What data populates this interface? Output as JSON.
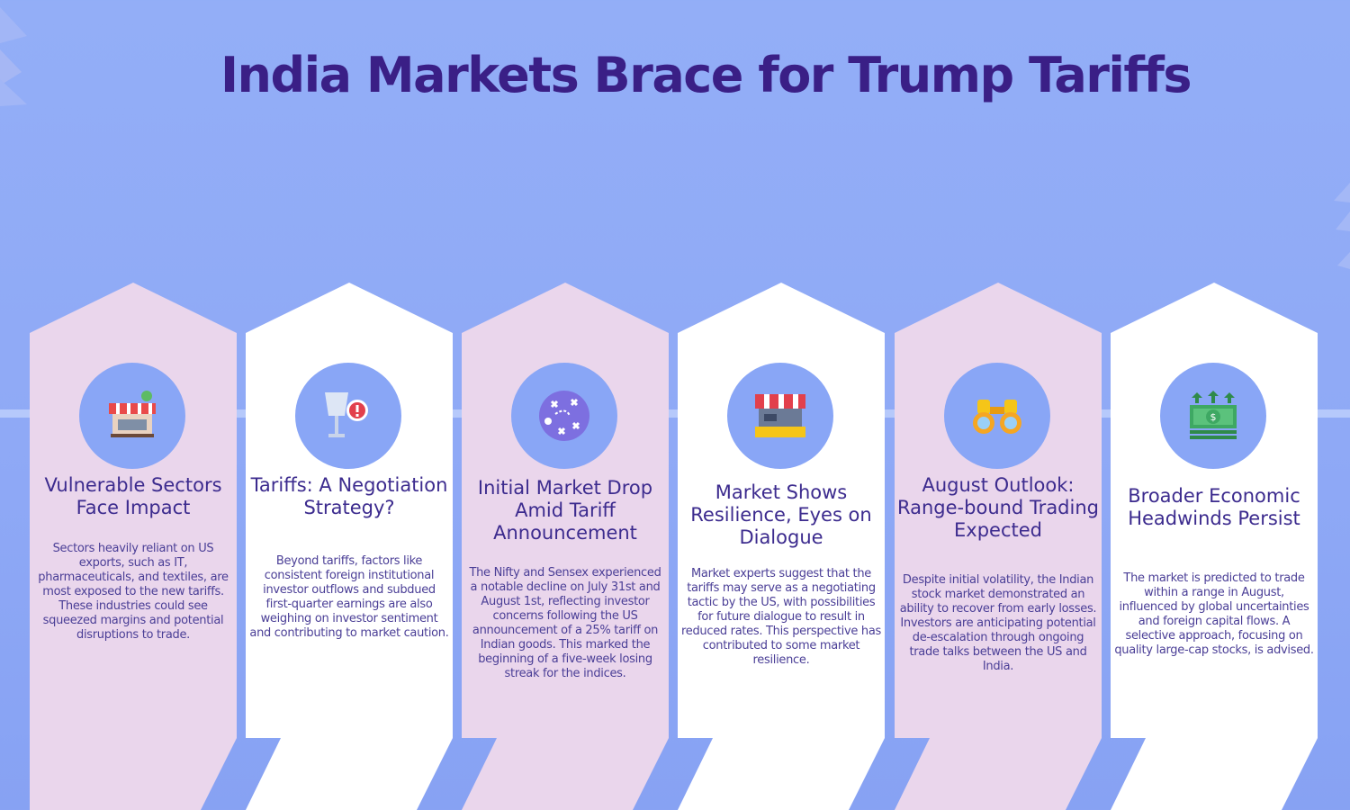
{
  "title": "India Markets Brace for Trump Tariffs",
  "colors": {
    "background": "#8fa9f6",
    "card_pink": "#ead6ec",
    "card_white": "#ffffff",
    "icon_circle": "#89a6f6",
    "title_text": "#3a1f86",
    "card_text": "#4a3e96"
  },
  "cards": [
    {
      "title": "Vulnerable Sectors Face Impact",
      "body": "Sectors heavily reliant on US exports, such as IT, pharmaceuticals, and textiles, are most exposed to the new tariffs. These industries could see squeezed margins and potential disruptions to trade.",
      "icon": "market-stall-icon",
      "tint": "pink"
    },
    {
      "title": "Tariffs: A Negotiation Strategy?",
      "body": "Beyond tariffs, factors like consistent foreign institutional investor outflows and subdued first-quarter earnings are also weighing on investor sentiment and contributing to market caution.",
      "icon": "broken-glass-warning-icon",
      "tint": "white"
    },
    {
      "title": "Initial Market Drop Amid Tariff Announcement",
      "body": "The Nifty and Sensex experienced a notable decline on July 31st and August 1st, reflecting investor concerns following the US announcement of a 25% tariff on Indian goods. This marked the beginning of a five-week losing streak for the indices.",
      "icon": "strategy-plan-icon",
      "tint": "pink"
    },
    {
      "title": "Market Shows Resilience, Eyes on Dialogue",
      "body": "Market experts suggest that the tariffs may serve as a negotiating tactic by the US, with possibilities for future dialogue to result in reduced rates. This perspective has contributed to some market resilience.",
      "icon": "shop-counter-icon",
      "tint": "white"
    },
    {
      "title": "August Outlook: Range-bound Trading Expected",
      "body": "Despite initial volatility, the Indian stock market demonstrated an ability to recover from early losses. Investors are anticipating potential de-escalation through ongoing trade talks between the US and India.",
      "icon": "binoculars-icon",
      "tint": "pink"
    },
    {
      "title": "Broader Economic Headwinds Persist",
      "body": "The market is predicted to trade within a range in August, influenced by global uncertainties and foreign capital flows. A selective approach, focusing on quality large-cap stocks, is advised.",
      "icon": "money-growth-icon",
      "tint": "white"
    }
  ]
}
